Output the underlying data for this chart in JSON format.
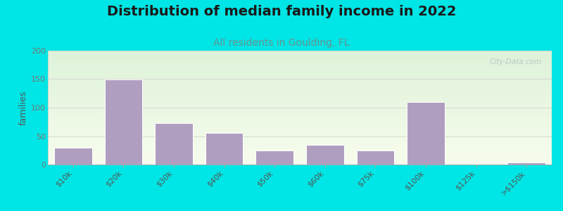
{
  "title": "Distribution of median family income in 2022",
  "subtitle": "All residents in Goulding, FL",
  "ylabel": "families",
  "categories": [
    "$10k",
    "$20k",
    "$30k",
    "$40k",
    "$50k",
    "$60k",
    "$75k",
    "$100k",
    "$125k",
    ">$150k"
  ],
  "values": [
    30,
    149,
    73,
    55,
    25,
    35,
    25,
    110,
    0,
    4
  ],
  "bar_color": "#b09ec0",
  "bar_edgecolor": "#ffffff",
  "background_color": "#00e5e5",
  "plot_bg_color_topleft": "#d8ecd0",
  "plot_bg_color_bottomright": "#f8f8f0",
  "title_fontsize": 14,
  "title_color": "#1a1a1a",
  "subtitle_fontsize": 10,
  "subtitle_color": "#6b9090",
  "ylabel_color": "#555555",
  "tick_label_color": "#555555",
  "ytick_label_color": "#777777",
  "ylim": [
    0,
    200
  ],
  "yticks": [
    0,
    50,
    100,
    150,
    200
  ],
  "watermark": "City-Data.com",
  "watermark_color": "#b0c0c0",
  "grid_color": "#cccccc"
}
